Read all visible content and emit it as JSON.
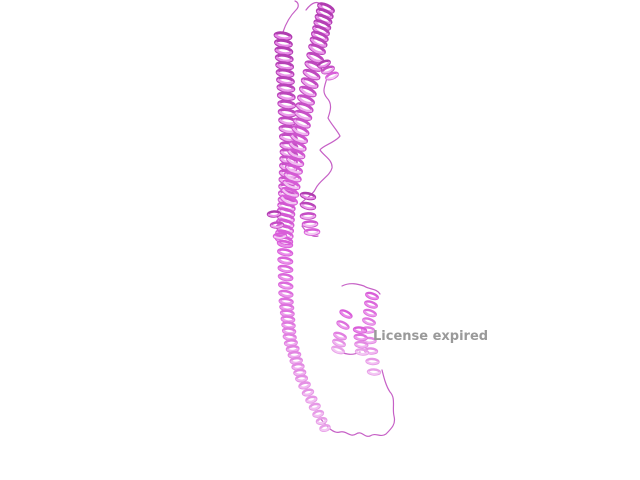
{
  "viewer": {
    "watermark": "License expired"
  },
  "colors": {
    "background": "#ffffff",
    "cartoon_dark": "#b03cb0",
    "cartoon_mid": "#d95ed9",
    "cartoon_light": "#e8a0e8",
    "watermark": "#9a9a9a"
  }
}
